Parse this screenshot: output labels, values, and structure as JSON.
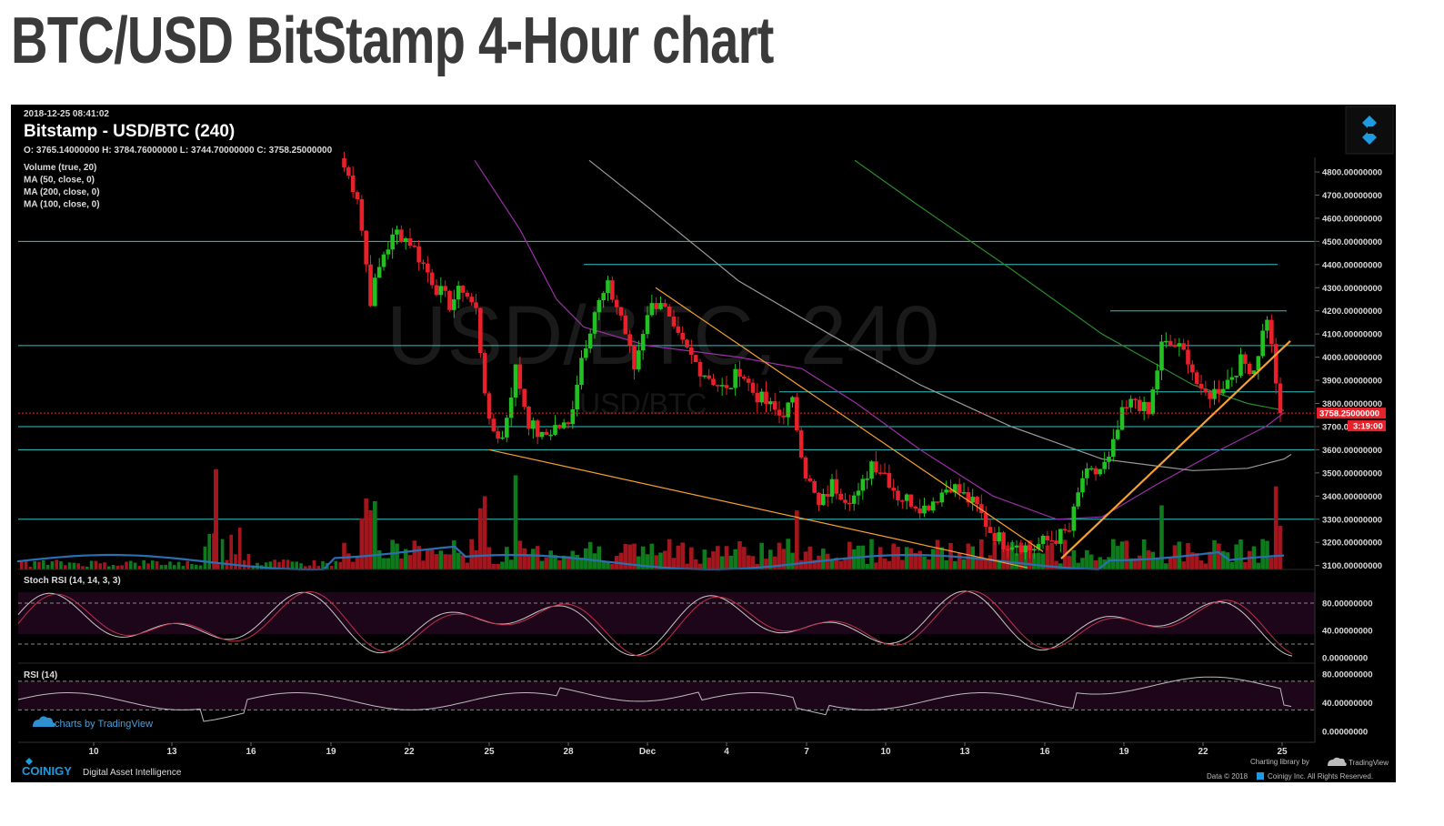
{
  "page_title": "BTC/USD BitStamp 4-Hour chart",
  "header": {
    "timestamp": "2018-12-25 08:41:02",
    "symbol": "Bitstamp - USD/BTC (240)",
    "ohlc": "O: 3765.14000000 H: 3784.76000000 L: 3744.70000000 C: 3758.25000000",
    "indicators": [
      "Volume (true, 20)",
      "MA (50, close, 0)",
      "MA (200, close, 0)",
      "MA (100, close, 0)"
    ],
    "watermark": "USD/BTC, 240",
    "watermark_small": "USD/BTC"
  },
  "price_axis": {
    "labels": [
      "4800.00000000",
      "4700.00000000",
      "4600.00000000",
      "4500.00000000",
      "4400.00000000",
      "4300.00000000",
      "4200.00000000",
      "4100.00000000",
      "4000.00000000",
      "3900.00000000",
      "3800.00000000",
      "3700.00000000",
      "3600.00000000",
      "3500.00000000",
      "3400.00000000",
      "3300.00000000",
      "3200.00000000",
      "3100.00000000"
    ],
    "current_price": "3758.25000000",
    "countdown": "3:19:00"
  },
  "stoch_rsi": {
    "title": "Stoch RSI (14, 14, 3, 3)",
    "labels": [
      "80.00000000",
      "40.00000000",
      "0.00000000"
    ]
  },
  "rsi": {
    "title": "RSI (14)",
    "labels": [
      "80.00000000",
      "40.00000000",
      "0.00000000"
    ]
  },
  "time_axis": [
    "10",
    "13",
    "16",
    "19",
    "22",
    "25",
    "28",
    "Dec",
    "4",
    "7",
    "10",
    "13",
    "16",
    "19",
    "22",
    "25"
  ],
  "branding": {
    "tv_badge": "charts by TradingView",
    "coinigy": "COINIGY",
    "coinigy_tag": "Digital Asset Intelligence",
    "charting_lib": "Charting library by",
    "tradingview": "TradingView",
    "copyright": "Data © 2018",
    "copyright2": "Coinigy Inc. All Rights Reserved."
  },
  "colors": {
    "up": "#22c122",
    "down": "#e8202a",
    "support": "#2ec4c4",
    "trend": "#f5a030",
    "ma50": "#9b2fa8",
    "ma100": "#9a9a9a",
    "ma200": "#2a8a2a",
    "vol_ma": "#2b6fb3",
    "panel": "#1a0516"
  },
  "chart_data": {
    "type": "candlestick",
    "title": "Bitstamp - USD/BTC (240)",
    "timeframe": "4H",
    "x_ticks": [
      "10",
      "13",
      "16",
      "19",
      "22",
      "25",
      "28",
      "Dec",
      "4",
      "7",
      "10",
      "13",
      "16",
      "19",
      "22",
      "25"
    ],
    "ylim": [
      3100,
      4850
    ],
    "last_close": 3758.25,
    "close_path": [
      {
        "t": "Nov 19 12:00",
        "close": 4820
      },
      {
        "t": "Nov 20",
        "close": 4700
      },
      {
        "t": "Nov 20 12:00",
        "close": 4250
      },
      {
        "t": "Nov 21",
        "close": 4450
      },
      {
        "t": "Nov 21 12:00",
        "close": 4540
      },
      {
        "t": "Nov 22",
        "close": 4500
      },
      {
        "t": "Nov 22 12:00",
        "close": 4400
      },
      {
        "t": "Nov 23",
        "close": 4300
      },
      {
        "t": "Nov 23 12:00",
        "close": 4230
      },
      {
        "t": "Nov 24",
        "close": 4300
      },
      {
        "t": "Nov 24 12:00",
        "close": 4200
      },
      {
        "t": "Nov 25",
        "close": 3700
      },
      {
        "t": "Nov 25 12:00",
        "close": 3650
      },
      {
        "t": "Nov 26",
        "close": 3950
      },
      {
        "t": "Nov 26 12:00",
        "close": 3720
      },
      {
        "t": "Nov 27",
        "close": 3650
      },
      {
        "t": "Nov 27 12:00",
        "close": 3700
      },
      {
        "t": "Nov 28",
        "close": 3700
      },
      {
        "t": "Nov 28 12:00",
        "close": 4000
      },
      {
        "t": "Nov 29",
        "close": 4200
      },
      {
        "t": "Nov 29 12:00",
        "close": 4300
      },
      {
        "t": "Nov 30",
        "close": 4180
      },
      {
        "t": "Nov 30 12:00",
        "close": 3950
      },
      {
        "t": "Dec 1",
        "close": 4200
      },
      {
        "t": "Dec 1 12:00",
        "close": 4250
      },
      {
        "t": "Dec 2",
        "close": 4100
      },
      {
        "t": "Dec 3",
        "close": 3950
      },
      {
        "t": "Dec 4",
        "close": 3850
      },
      {
        "t": "Dec 4 12:00",
        "close": 3950
      },
      {
        "t": "Dec 5",
        "close": 3850
      },
      {
        "t": "Dec 5 12:00",
        "close": 3800
      },
      {
        "t": "Dec 6",
        "close": 3750
      },
      {
        "t": "Dec 6 12:00",
        "close": 3800
      },
      {
        "t": "Dec 7",
        "close": 3500
      },
      {
        "t": "Dec 7 12:00",
        "close": 3350
      },
      {
        "t": "Dec 8",
        "close": 3450
      },
      {
        "t": "Dec 8 12:00",
        "close": 3400
      },
      {
        "t": "Dec 9",
        "close": 3400
      },
      {
        "t": "Dec 9 12:00",
        "close": 3550
      },
      {
        "t": "Dec 10",
        "close": 3500
      },
      {
        "t": "Dec 10 12:00",
        "close": 3400
      },
      {
        "t": "Dec 11",
        "close": 3380
      },
      {
        "t": "Dec 11 12:00",
        "close": 3350
      },
      {
        "t": "Dec 12",
        "close": 3400
      },
      {
        "t": "Dec 12 12:00",
        "close": 3450
      },
      {
        "t": "Dec 13",
        "close": 3400
      },
      {
        "t": "Dec 13 12:00",
        "close": 3350
      },
      {
        "t": "Dec 14",
        "close": 3250
      },
      {
        "t": "Dec 14 12:00",
        "close": 3200
      },
      {
        "t": "Dec 15",
        "close": 3200
      },
      {
        "t": "Dec 15 12:00",
        "close": 3170
      },
      {
        "t": "Dec 16",
        "close": 3200
      },
      {
        "t": "Dec 16 12:00",
        "close": 3220
      },
      {
        "t": "Dec 17",
        "close": 3250
      },
      {
        "t": "Dec 17 12:00",
        "close": 3480
      },
      {
        "t": "Dec 18",
        "close": 3500
      },
      {
        "t": "Dec 18 12:00",
        "close": 3550
      },
      {
        "t": "Dec 19",
        "close": 3750
      },
      {
        "t": "Dec 19 12:00",
        "close": 3820
      },
      {
        "t": "Dec 20",
        "close": 3750
      },
      {
        "t": "Dec 20 12:00",
        "close": 4050
      },
      {
        "t": "Dec 21",
        "close": 4050
      },
      {
        "t": "Dec 21 12:00",
        "close": 4000
      },
      {
        "t": "Dec 22",
        "close": 3830
      },
      {
        "t": "Dec 22 12:00",
        "close": 3850
      },
      {
        "t": "Dec 23",
        "close": 3900
      },
      {
        "t": "Dec 23 12:00",
        "close": 3980
      },
      {
        "t": "Dec 24",
        "close": 3950
      },
      {
        "t": "Dec 24 12:00",
        "close": 4180
      },
      {
        "t": "Dec 25",
        "close": 3760
      }
    ],
    "support_resistance_levels": [
      4500,
      4400,
      4200,
      4050,
      3850,
      3700,
      3600,
      3300
    ],
    "moving_averages": [
      {
        "name": "MA (50, close, 0)",
        "color": "#9b2fa8"
      },
      {
        "name": "MA (100, close, 0)",
        "color": "#9a9a9a"
      },
      {
        "name": "MA (200, close, 0)",
        "color": "#2a8a2a"
      }
    ],
    "stoch_rsi_levels": [
      20,
      80
    ],
    "rsi_levels": [
      30,
      70
    ]
  }
}
